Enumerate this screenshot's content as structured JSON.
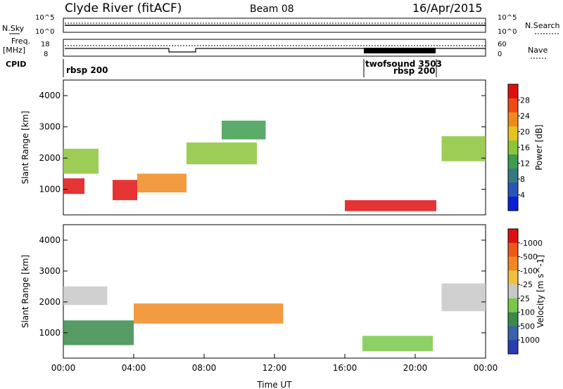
{
  "header": {
    "station": "Clyde River (fitACF)",
    "beam": "Beam 08",
    "date": "16/Apr/2015"
  },
  "summary_panels": {
    "nsky_label": "N.Sky",
    "nsearch_label": "N.Search",
    "noise_left_ticks": [
      "10^5",
      "10^0"
    ],
    "noise_right_ticks": [
      "10^5",
      "10^0"
    ],
    "freq_label": "Freq.",
    "freq_unit": "[MHz]",
    "freq_ticks": [
      "18",
      "8"
    ],
    "nave_label": "Nave",
    "nave_ticks": [
      "60",
      "0"
    ],
    "cpid_label": "CPID",
    "cpid_segments": [
      {
        "label": "rbsp 200",
        "start_h": 0.0,
        "end_h": 17.0
      },
      {
        "label": "twofsound 3503",
        "start_h": 17.0,
        "end_h": 21.0
      },
      {
        "label": "rbsp 200",
        "start_h": 21.0,
        "end_h": 24.0
      }
    ]
  },
  "chart_data": [
    {
      "type": "heatmap",
      "quantity": "Power",
      "ylabel": "Slant Range [km]",
      "xlim": [
        0,
        24
      ],
      "ylim": [
        180,
        4500
      ],
      "yticks": [
        "1000",
        "2000",
        "3000",
        "4000"
      ],
      "colorbar": {
        "label": "Power [dB]",
        "tick_labels": [
          "4",
          "8",
          "12",
          "16",
          "20",
          "24",
          "28"
        ],
        "colors": [
          "#0a20d8",
          "#2a55b8",
          "#357a80",
          "#3e9c50",
          "#8cc43a",
          "#e8c21e",
          "#f08a1e",
          "#ee4a16",
          "#e01010"
        ]
      },
      "echo_bands": [
        {
          "t0": 0.0,
          "t1": 1.2,
          "r0": 850,
          "r1": 1350,
          "level": 8
        },
        {
          "t0": 2.8,
          "t1": 4.2,
          "r0": 650,
          "r1": 1300,
          "level": 8
        },
        {
          "t0": 4.2,
          "t1": 7.0,
          "r0": 900,
          "r1": 1500,
          "level": 6
        },
        {
          "t0": 16.0,
          "t1": 21.2,
          "r0": 300,
          "r1": 650,
          "level": 8
        },
        {
          "t0": 0.0,
          "t1": 2.0,
          "r0": 1500,
          "r1": 2300,
          "level": 4
        },
        {
          "t0": 7.0,
          "t1": 11.0,
          "r0": 1800,
          "r1": 2500,
          "level": 4
        },
        {
          "t0": 9.0,
          "t1": 11.5,
          "r0": 2600,
          "r1": 3200,
          "level": 3
        },
        {
          "t0": 21.5,
          "t1": 24.0,
          "r0": 1900,
          "r1": 2700,
          "level": 4
        }
      ]
    },
    {
      "type": "heatmap",
      "quantity": "Velocity",
      "xlabel": "Time UT",
      "ylabel": "Slant Range [km]",
      "xlim": [
        0,
        24
      ],
      "ylim": [
        180,
        4500
      ],
      "xticks": [
        "00:00",
        "04:00",
        "08:00",
        "12:00",
        "16:00",
        "20:00",
        "00:00"
      ],
      "yticks": [
        "1000",
        "2000",
        "3000",
        "4000"
      ],
      "colorbar": {
        "label": "Velocity [m s^-1]",
        "tick_labels": [
          "1000",
          "500",
          "100",
          "25",
          "-25",
          "-100",
          "-500",
          "-1000"
        ],
        "colors": [
          "#2a3cb0",
          "#3a62a8",
          "#3a8a4a",
          "#7ac84a",
          "#c8c8c8",
          "#f0c040",
          "#f08a1e",
          "#ee5a16",
          "#e01010"
        ]
      },
      "echo_bands": [
        {
          "t0": 0.0,
          "t1": 2.5,
          "r0": 1900,
          "r1": 2500,
          "level": 4
        },
        {
          "t0": 4.0,
          "t1": 12.5,
          "r0": 1300,
          "r1": 1950,
          "level": 6
        },
        {
          "t0": 0.0,
          "t1": 4.0,
          "r0": 600,
          "r1": 1400,
          "level": 2
        },
        {
          "t0": 17.0,
          "t1": 21.0,
          "r0": 400,
          "r1": 900,
          "level": 3
        },
        {
          "t0": 21.5,
          "t1": 24.0,
          "r0": 1700,
          "r1": 2600,
          "level": 4
        }
      ]
    }
  ]
}
